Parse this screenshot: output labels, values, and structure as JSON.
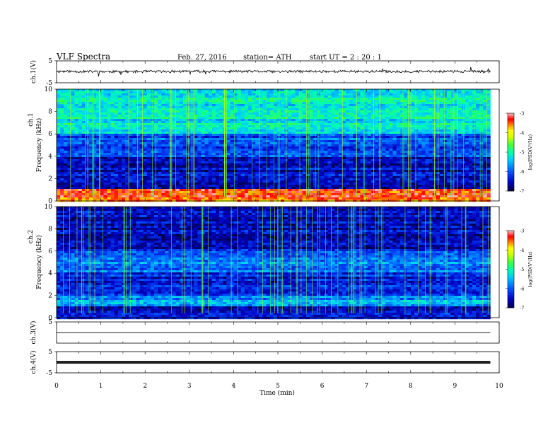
{
  "header": {
    "title": "VLF  Spectra",
    "date": "Feb. 27, 2016",
    "station": "station= ATH",
    "start": "start  UT  =   2  : 20 : 1"
  },
  "colors": {
    "colormap": [
      "#000040",
      "#0000a0",
      "#0040ff",
      "#00c0ff",
      "#00ffc0",
      "#40ff40",
      "#c0ff00",
      "#ffff00",
      "#ff8000",
      "#ff0000",
      "#ff8080",
      "#ffffff"
    ]
  },
  "chart_data": [
    {
      "type": "line",
      "name": "ch.1 waveform",
      "ylabel": "ch.1(V)",
      "ylim": [
        -5,
        5
      ],
      "yticks": [
        "5",
        "-5"
      ],
      "x": [
        0,
        1,
        2,
        3,
        4,
        5,
        6,
        7,
        8,
        9,
        9.8
      ],
      "y": [
        0.2,
        0.1,
        0.1,
        0.2,
        0.2,
        0.1,
        0.2,
        0.2,
        0.1,
        0.2,
        0.1
      ]
    },
    {
      "type": "heatmap",
      "name": "ch.1 spectrogram",
      "ylabel_top": "ch.1",
      "ylabel": "Frequency  (kHz)",
      "ylim": [
        0,
        10
      ],
      "yticks": [
        "0",
        "2",
        "4",
        "6",
        "8",
        "10"
      ],
      "colorbar_label": "log(PSD(V²/Hz)",
      "colorbar_range": [
        -7,
        -3
      ],
      "colorbar_ticks": [
        "-3",
        "-4",
        "-5",
        "-6",
        "-7"
      ],
      "bands_khz_logpsd": [
        {
          "from": 0,
          "to": 1,
          "value": -3.5
        },
        {
          "from": 1,
          "to": 2,
          "value": -6.6
        },
        {
          "from": 2,
          "to": 4,
          "value": -6.5
        },
        {
          "from": 4,
          "to": 6,
          "value": -6.0
        },
        {
          "from": 6,
          "to": 10,
          "value": -5.2
        }
      ]
    },
    {
      "type": "heatmap",
      "name": "ch.2 spectrogram",
      "ylabel_top": "ch.2",
      "ylabel": "Frequency  (kHz)",
      "ylim": [
        0,
        10
      ],
      "yticks": [
        "0",
        "2",
        "4",
        "6",
        "8",
        "10"
      ],
      "colorbar_label": "log(PSD(V²/Hz)",
      "colorbar_range": [
        -7,
        -3
      ],
      "colorbar_ticks": [
        "-3",
        "-4",
        "-5",
        "-6",
        "-7"
      ],
      "bands_khz_logpsd": [
        {
          "from": 0,
          "to": 1,
          "value": -6.4
        },
        {
          "from": 1,
          "to": 2,
          "value": -5.6
        },
        {
          "from": 2,
          "to": 4,
          "value": -6.3
        },
        {
          "from": 4,
          "to": 6,
          "value": -5.8
        },
        {
          "from": 6,
          "to": 10,
          "value": -6.5
        }
      ]
    },
    {
      "type": "line",
      "name": "ch.3 waveform",
      "ylabel": "ch.3(V)",
      "ylim": [
        -5,
        5
      ],
      "yticks": [
        "5"
      ],
      "x": [
        0,
        9.8
      ],
      "y": [
        0,
        0
      ]
    },
    {
      "type": "line",
      "name": "ch.4 waveform",
      "ylabel": "ch.4(V)",
      "ylim": [
        -5,
        5
      ],
      "yticks": [
        "5",
        "-5"
      ],
      "x": [
        0,
        9.8
      ],
      "y": [
        0,
        0
      ]
    }
  ],
  "xaxis": {
    "label": "Time  (min)",
    "xlim": [
      0,
      10
    ],
    "ticks": [
      "0",
      "1",
      "2",
      "3",
      "4",
      "5",
      "6",
      "7",
      "8",
      "9",
      "10"
    ]
  }
}
